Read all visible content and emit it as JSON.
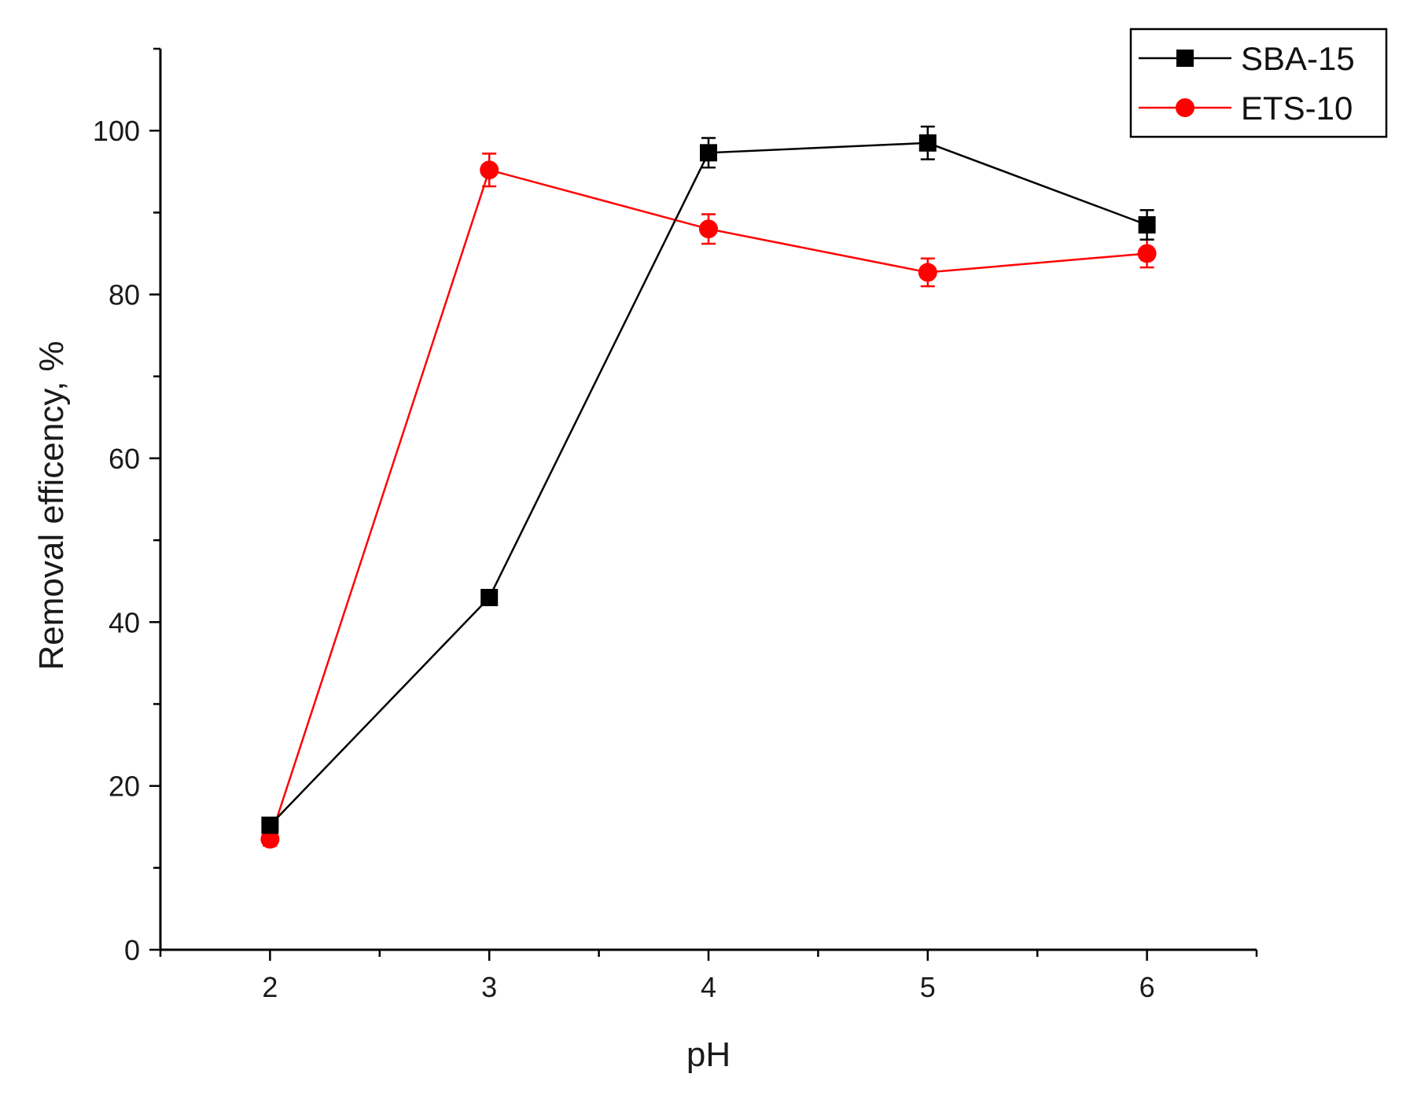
{
  "chart_data": {
    "type": "line",
    "xlabel": "pH",
    "ylabel": "Removal efficency, %",
    "x": [
      2,
      3,
      4,
      5,
      6
    ],
    "x_ticks": [
      "2",
      "3",
      "4",
      "5",
      "6"
    ],
    "y_ticks": [
      "0",
      "20",
      "40",
      "60",
      "80",
      "100"
    ],
    "xlim": [
      1.5,
      6.5
    ],
    "ylim": [
      0,
      110
    ],
    "grid": false,
    "legend_position": "top-right",
    "series": [
      {
        "name": "SBA-15",
        "color": "#000000",
        "marker": "square",
        "values": [
          15.2,
          43.0,
          97.3,
          98.5,
          88.5
        ],
        "errors": [
          0.8,
          0.5,
          1.8,
          2.0,
          1.8
        ]
      },
      {
        "name": "ETS-10",
        "color": "#ff0000",
        "marker": "circle",
        "values": [
          13.5,
          95.2,
          88.0,
          82.7,
          85.0
        ],
        "errors": [
          0.8,
          2.0,
          1.8,
          1.7,
          1.7
        ]
      }
    ]
  }
}
